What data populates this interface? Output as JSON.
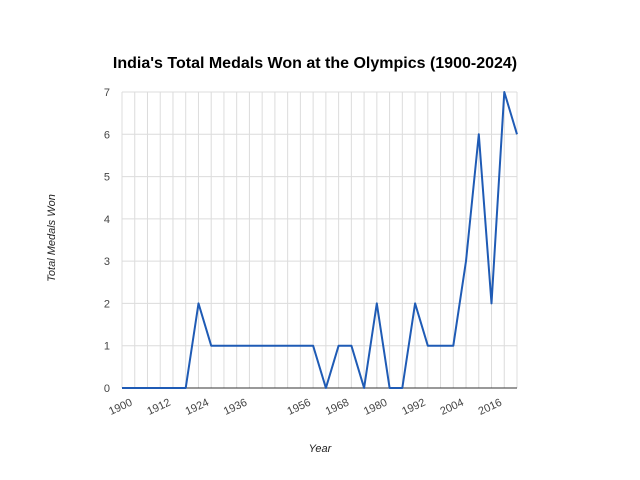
{
  "chart_data": {
    "type": "line",
    "title": "India's Total Medals Won at the Olympics (1900-2024)",
    "xlabel": "Year",
    "ylabel": "Total Medals Won",
    "xlim": [
      1900,
      2024
    ],
    "ylim": [
      0,
      7
    ],
    "x_ticks": [
      1900,
      1912,
      1924,
      1936,
      1956,
      1968,
      1980,
      1992,
      2004,
      2016
    ],
    "y_ticks": [
      0,
      1,
      2,
      3,
      4,
      5,
      6,
      7
    ],
    "grid": true,
    "series": [
      {
        "x": [
          1900,
          1904,
          1908,
          1912,
          1920,
          1924,
          1928,
          1932,
          1936,
          1948,
          1952,
          1956,
          1960,
          1964,
          1968,
          1972,
          1976,
          1980,
          1984,
          1988,
          1992,
          1996,
          2000,
          2004,
          2008,
          2012,
          2016,
          2020,
          2024
        ],
        "values": [
          0,
          0,
          0,
          0,
          0,
          2,
          1,
          1,
          1,
          1,
          1,
          1,
          1,
          0,
          1,
          1,
          0,
          2,
          0,
          0,
          2,
          1,
          1,
          1,
          3,
          6,
          2,
          7,
          6
        ],
        "color": "#1f5bb5"
      }
    ]
  }
}
